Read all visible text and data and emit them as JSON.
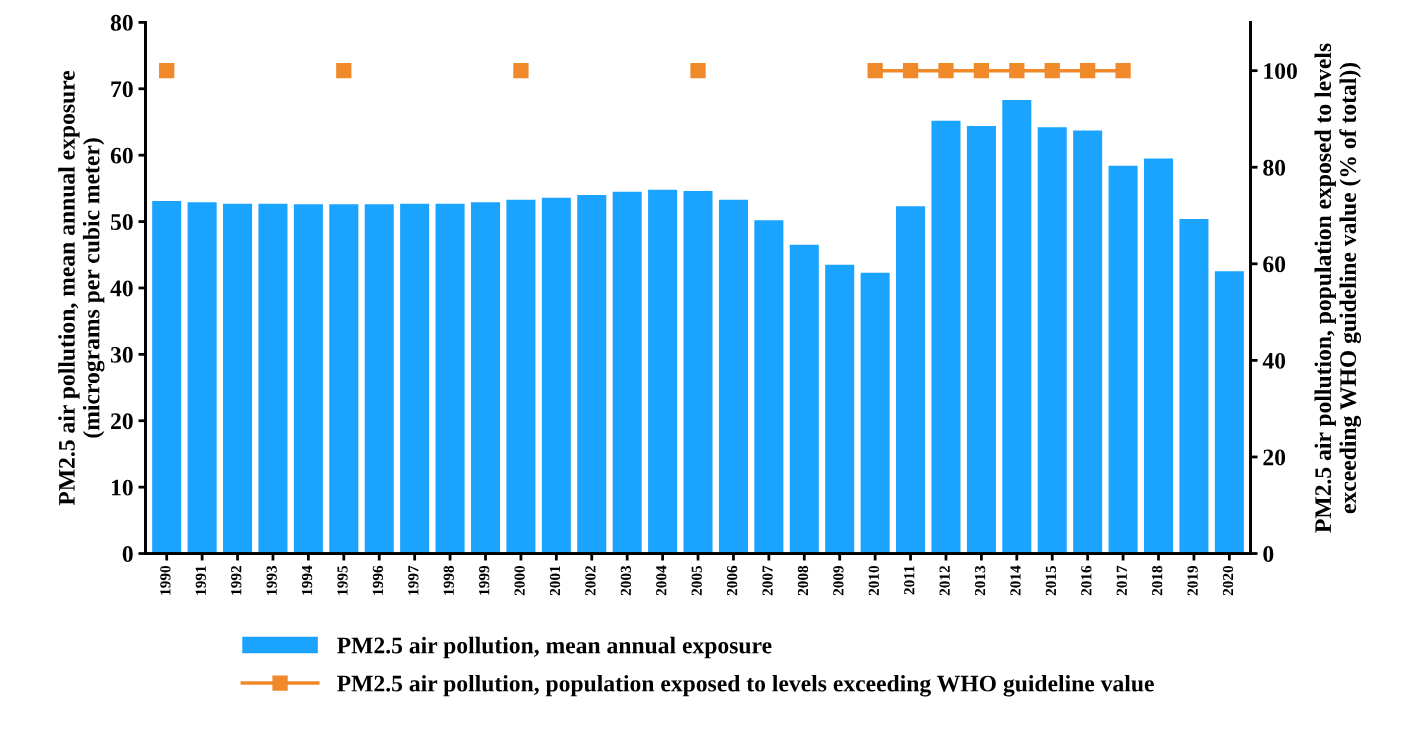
{
  "chart_data": {
    "type": "bar",
    "categories": [
      "1990",
      "1991",
      "1992",
      "1993",
      "1994",
      "1995",
      "1996",
      "1997",
      "1998",
      "1999",
      "2000",
      "2001",
      "2002",
      "2003",
      "2004",
      "2005",
      "2006",
      "2007",
      "2008",
      "2009",
      "2010",
      "2011",
      "2012",
      "2013",
      "2014",
      "2015",
      "2016",
      "2017",
      "2018",
      "2019",
      "2020"
    ],
    "ylabel": "PM2.5 air pollution, mean annual exposure\n(micrograms per cubic meter)",
    "y2label": "PM2.5 air pollution, population exposed to levels\nexceeding WHO guideline value (% of total))",
    "ylim": [
      0,
      80
    ],
    "yticks": [
      0,
      10,
      20,
      30,
      40,
      50,
      60,
      70,
      80
    ],
    "y2lim": [
      0,
      110
    ],
    "y2ticks": [
      0,
      20,
      40,
      60,
      80,
      100
    ],
    "grid": false,
    "legend": "bottom",
    "series": [
      {
        "name": "PM2.5 air pollution, mean annual exposure",
        "color": "#1aa3ff",
        "values": [
          53.1,
          52.9,
          52.7,
          52.7,
          52.6,
          52.6,
          52.6,
          52.7,
          52.7,
          52.9,
          53.3,
          53.6,
          54.0,
          54.5,
          54.8,
          54.6,
          53.3,
          50.2,
          46.5,
          43.5,
          42.3,
          52.3,
          65.2,
          64.4,
          68.3,
          64.2,
          63.7,
          58.4,
          59.5,
          50.4,
          42.5
        ]
      },
      {
        "name": "PM2.5 air pollution, population exposed to levels exceeding WHO guideline value",
        "type": "line",
        "axis": "y2",
        "color": "#f0892a",
        "marker": "square",
        "values": [
          100,
          null,
          null,
          null,
          null,
          100,
          null,
          null,
          null,
          null,
          100,
          null,
          null,
          null,
          null,
          100,
          null,
          null,
          null,
          null,
          100,
          100,
          100,
          100,
          100,
          100,
          100,
          100,
          null,
          null,
          null
        ]
      }
    ]
  }
}
